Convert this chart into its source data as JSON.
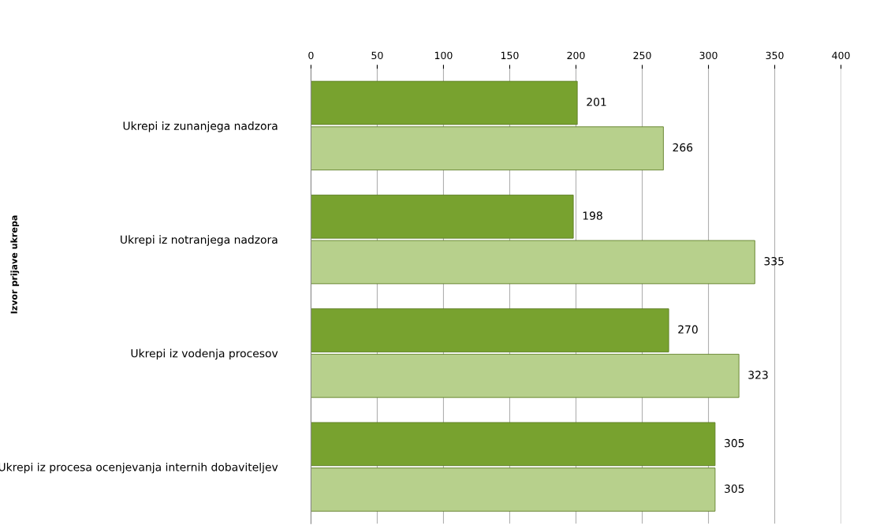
{
  "chart_data": {
    "type": "bar",
    "orientation": "horizontal",
    "ylabel": "Izvor prijave ukrepa",
    "categories": [
      "Ukrepi iz zunanjega nadzora",
      "Ukrepi iz notranjega nadzora",
      "Ukrepi iz vodenja procesov",
      "Ukrepi iz procesa ocenjevanja internih dobaviteljev"
    ],
    "series": [
      {
        "color": "#78a22f",
        "values": [
          201,
          198,
          270,
          305
        ]
      },
      {
        "color": "#b7d08c",
        "values": [
          266,
          335,
          323,
          305
        ]
      }
    ],
    "xlim": [
      0,
      400
    ],
    "xticks": [
      0,
      50,
      100,
      150,
      200,
      250,
      300,
      350,
      400
    ],
    "grid": "x",
    "data_labels": true
  }
}
